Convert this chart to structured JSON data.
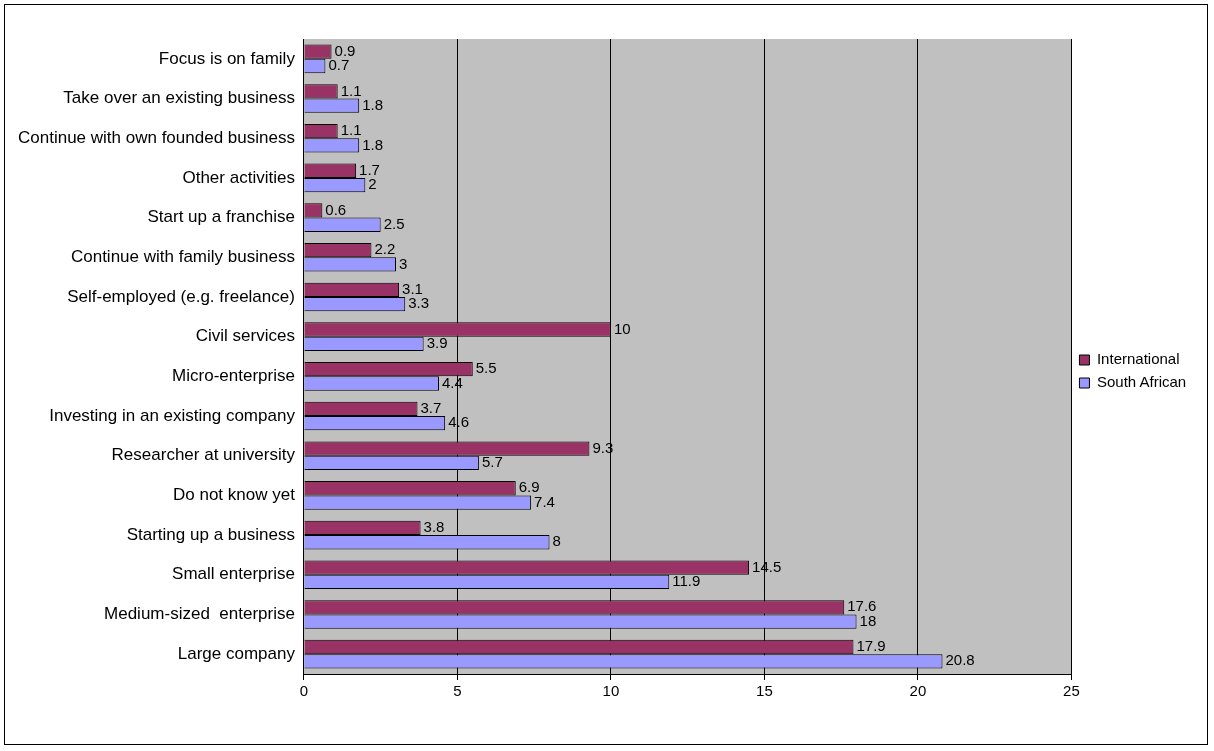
{
  "chart_data": {
    "type": "bar",
    "orientation": "horizontal",
    "categories": [
      "Focus is on family",
      "Take over an existing business",
      "Continue with own founded business",
      "Other activities",
      "Start up a franchise",
      "Continue with family business",
      "Self-employed (e.g. freelance)",
      "Civil services",
      "Micro-enterprise",
      "Investing in an existing company",
      "Researcher at university",
      "Do not know yet",
      "Starting up a business",
      "Small enterprise",
      "Medium-sized  enterprise",
      "Large company"
    ],
    "series": [
      {
        "name": "International",
        "color": "#993366",
        "values": [
          0.9,
          1.1,
          1.1,
          1.7,
          0.6,
          2.2,
          3.1,
          10,
          5.5,
          3.7,
          9.3,
          6.9,
          3.8,
          14.5,
          17.6,
          17.9
        ]
      },
      {
        "name": "South African",
        "color": "#9999ff",
        "values": [
          0.7,
          1.8,
          1.8,
          2,
          2.5,
          3,
          3.3,
          3.9,
          4.4,
          4.6,
          5.7,
          7.4,
          8,
          11.9,
          18,
          20.8
        ]
      }
    ],
    "xlim": [
      0,
      25
    ],
    "xticks": [
      0,
      5,
      10,
      15,
      20,
      25
    ],
    "grid": "x",
    "legend": "right",
    "data_labels": true
  }
}
